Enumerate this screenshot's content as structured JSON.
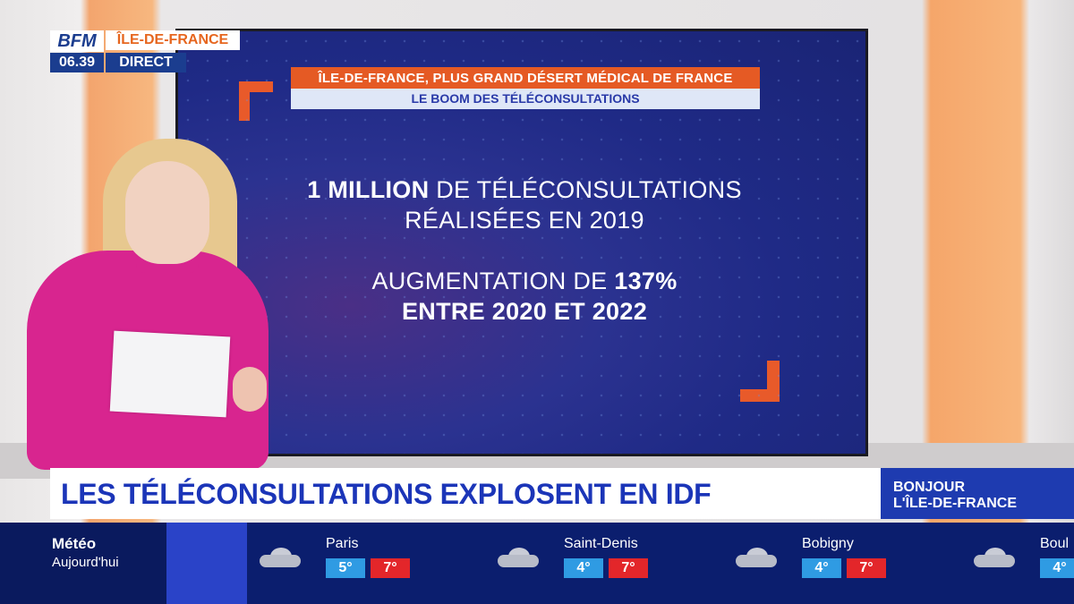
{
  "logo": {
    "brand": "BFM",
    "region": "ÎLE-DE-FRANCE",
    "time": "06.39",
    "live": "DIRECT"
  },
  "screen": {
    "title": "ÎLE-DE-FRANCE, PLUS GRAND DÉSERT MÉDICAL DE FRANCE",
    "subtitle": "LE BOOM DES TÉLÉCONSULTATIONS",
    "stat1": {
      "bold": "1 MILLION",
      "rest": " DE TÉLÉCONSULTATIONS",
      "line2": "RÉALISÉES EN 2019"
    },
    "stat2": {
      "line1_start": "AUGMENTATION DE ",
      "line1_bold": "137%",
      "line2": "ENTRE 2020 ET 2022"
    }
  },
  "headline": "LES TÉLÉCONSULTATIONS EXPLOSENT EN IDF",
  "show": {
    "line1": "BONJOUR",
    "line2": "L'ÎLE-DE-FRANCE"
  },
  "weather": {
    "title": "Météo",
    "subtitle": "Aujourd'hui",
    "cities": [
      {
        "name": "Paris",
        "min": "5°",
        "max": "7°",
        "icon": "cloud-icon"
      },
      {
        "name": "Saint-Denis",
        "min": "4°",
        "max": "7°",
        "icon": "cloud-icon"
      },
      {
        "name": "Bobigny",
        "min": "4°",
        "max": "7°",
        "icon": "cloud-icon"
      },
      {
        "name": "Boul",
        "min": "4°",
        "max": "",
        "icon": "cloud-icon"
      }
    ]
  },
  "colors": {
    "brand_blue": "#1b3d8f",
    "accent_orange": "#e55a24",
    "headline_blue": "#1b35b8",
    "temp_min": "#2f9be3",
    "temp_max": "#e3262a"
  }
}
